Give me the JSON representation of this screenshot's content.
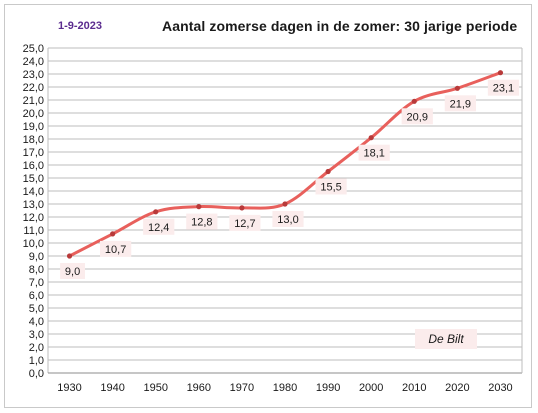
{
  "header": {
    "date_label": "1-9-2023",
    "title": "Aantal zomerse dagen in de zomer:  30 jarige periode"
  },
  "colors": {
    "line": "#e8605c",
    "marker": "#b83a3a",
    "grid": "#bdbdbd",
    "date_text": "#5b2c8f",
    "label_bg": "#fbecec",
    "note_bg": "#fbecec"
  },
  "annotation": {
    "text": "De Bilt"
  },
  "chart_data": {
    "type": "line",
    "title": "Aantal zomerse dagen in de zomer:  30 jarige periode",
    "xlabel": "",
    "ylabel": "",
    "categories": [
      "1930",
      "1940",
      "1950",
      "1960",
      "1970",
      "1980",
      "1990",
      "2000",
      "2010",
      "2020",
      "2030"
    ],
    "values": [
      9.0,
      10.7,
      12.4,
      12.8,
      12.7,
      13.0,
      15.5,
      18.1,
      20.9,
      21.9,
      23.1
    ],
    "data_labels": [
      "9,0",
      "10,7",
      "12,4",
      "12,8",
      "12,7",
      "13,0",
      "15,5",
      "18,1",
      "20,9",
      "21,9",
      "23,1"
    ],
    "ylim": [
      0,
      25
    ],
    "y_ticks": [
      "0,0",
      "1,0",
      "2,0",
      "3,0",
      "4,0",
      "5,0",
      "6,0",
      "7,0",
      "8,0",
      "9,0",
      "10,0",
      "11,0",
      "12,0",
      "13,0",
      "14,0",
      "15,0",
      "16,0",
      "17,0",
      "18,0",
      "19,0",
      "20,0",
      "21,0",
      "22,0",
      "23,0",
      "24,0",
      "25,0"
    ],
    "grid": true,
    "smooth": true,
    "legend": "none"
  }
}
